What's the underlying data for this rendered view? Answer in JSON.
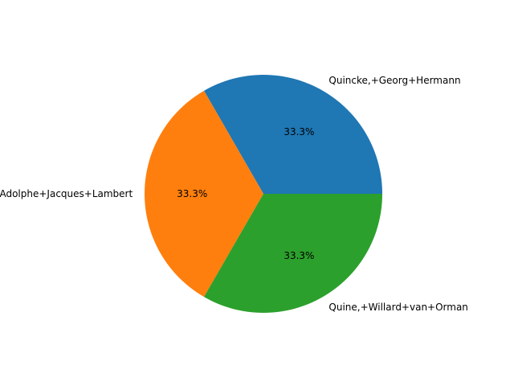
{
  "chart_data": {
    "type": "pie",
    "start_angle_deg": 0,
    "direction": "counterclockwise",
    "slices": [
      {
        "label": "Quincke,+Georg+Hermann",
        "value": 33.3,
        "pct_label": "33.3%",
        "color": "#1f77b4"
      },
      {
        "label": "Quetelet,+Adolphe+Jacques+Lambert",
        "value": 33.3,
        "pct_label": "33.3%",
        "color": "#ff7f0e"
      },
      {
        "label": "Quine,+Willard+van+Orman",
        "value": 33.3,
        "pct_label": "33.3%",
        "color": "#2ca02c"
      }
    ]
  }
}
